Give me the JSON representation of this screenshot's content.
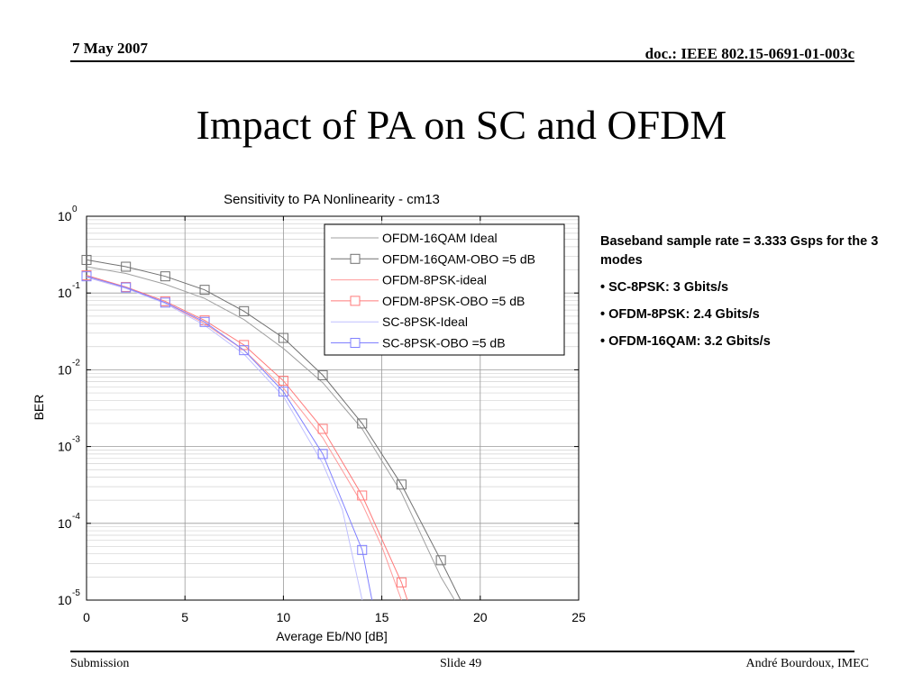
{
  "header": {
    "date": "7 May 2007",
    "doc": "doc.: IEEE 802.15-0691-01-003c"
  },
  "slide_title": "Impact of PA on SC and OFDM",
  "notes": [
    "Baseband sample rate = 3.333 Gsps for the 3 modes",
    "• SC-8PSK: 3 Gbits/s",
    "• OFDM-8PSK: 2.4 Gbits/s",
    "• OFDM-16QAM: 3.2 Gbits/s"
  ],
  "footer": {
    "left": "Submission",
    "center": "Slide 49",
    "right": "André Bourdoux, IMEC"
  },
  "chart_data": {
    "type": "line",
    "title": "Sensitivity to PA Nonlinearity - cm13",
    "xlabel": "Average Eb/N0 [dB]",
    "ylabel": "BER",
    "xlim": [
      0,
      25
    ],
    "ylim": [
      1e-05,
      1
    ],
    "yscale": "log",
    "x_ticks": [
      "0",
      "5",
      "10",
      "15",
      "20",
      "25"
    ],
    "y_ticks": [
      {
        "base": "10",
        "exp": "0",
        "value": 1
      },
      {
        "base": "10",
        "exp": "-1",
        "value": 0.1
      },
      {
        "base": "10",
        "exp": "-2",
        "value": 0.01
      },
      {
        "base": "10",
        "exp": "-3",
        "value": 0.001
      },
      {
        "base": "10",
        "exp": "-4",
        "value": 0.0001
      },
      {
        "base": "10",
        "exp": "-5",
        "value": 1e-05
      }
    ],
    "grid": true,
    "legend_position": "top-right",
    "series": [
      {
        "name": "OFDM-16QAM Ideal",
        "color": "#a0a0a0",
        "marker": "none",
        "x": [
          0,
          2,
          4,
          6,
          8,
          10,
          12,
          14,
          16,
          18,
          18.7
        ],
        "y": [
          0.22,
          0.18,
          0.13,
          0.085,
          0.045,
          0.019,
          0.0068,
          0.0017,
          0.00025,
          2e-05,
          1e-05
        ]
      },
      {
        "name": "OFDM-16QAM-OBO =5 dB",
        "color": "#707070",
        "marker": "square",
        "x": [
          0,
          2,
          4,
          6,
          8,
          10,
          12,
          14,
          16,
          18,
          19
        ],
        "y": [
          0.27,
          0.22,
          0.165,
          0.11,
          0.058,
          0.026,
          0.0085,
          0.002,
          0.00032,
          3.3e-05,
          1e-05
        ]
      },
      {
        "name": "OFDM-8PSK-ideal",
        "color": "#ff9a9a",
        "marker": "none",
        "x": [
          0,
          2,
          4,
          6,
          8,
          10,
          12,
          14,
          15,
          16
        ],
        "y": [
          0.16,
          0.115,
          0.075,
          0.04,
          0.018,
          0.0058,
          0.0013,
          0.00018,
          5e-05,
          1e-05
        ]
      },
      {
        "name": "OFDM-8PSK-OBO =5 dB",
        "color": "#ff7a7a",
        "marker": "square",
        "x": [
          0,
          2,
          4,
          6,
          8,
          10,
          12,
          14,
          16,
          16.3
        ],
        "y": [
          0.17,
          0.12,
          0.078,
          0.044,
          0.021,
          0.0072,
          0.0017,
          0.00023,
          1.7e-05,
          1e-05
        ]
      },
      {
        "name": "SC-8PSK-Ideal",
        "color": "#c0c0ff",
        "marker": "none",
        "x": [
          0,
          2,
          4,
          6,
          8,
          10,
          12,
          13,
          14
        ],
        "y": [
          0.16,
          0.115,
          0.073,
          0.038,
          0.016,
          0.0045,
          0.0006,
          0.00015,
          1e-05
        ]
      },
      {
        "name": "SC-8PSK-OBO =5 dB",
        "color": "#8080ff",
        "marker": "square",
        "x": [
          0,
          2,
          4,
          6,
          8,
          10,
          12,
          14,
          14.5
        ],
        "y": [
          0.165,
          0.118,
          0.075,
          0.042,
          0.018,
          0.0052,
          0.0008,
          4.5e-05,
          1e-05
        ]
      }
    ]
  }
}
